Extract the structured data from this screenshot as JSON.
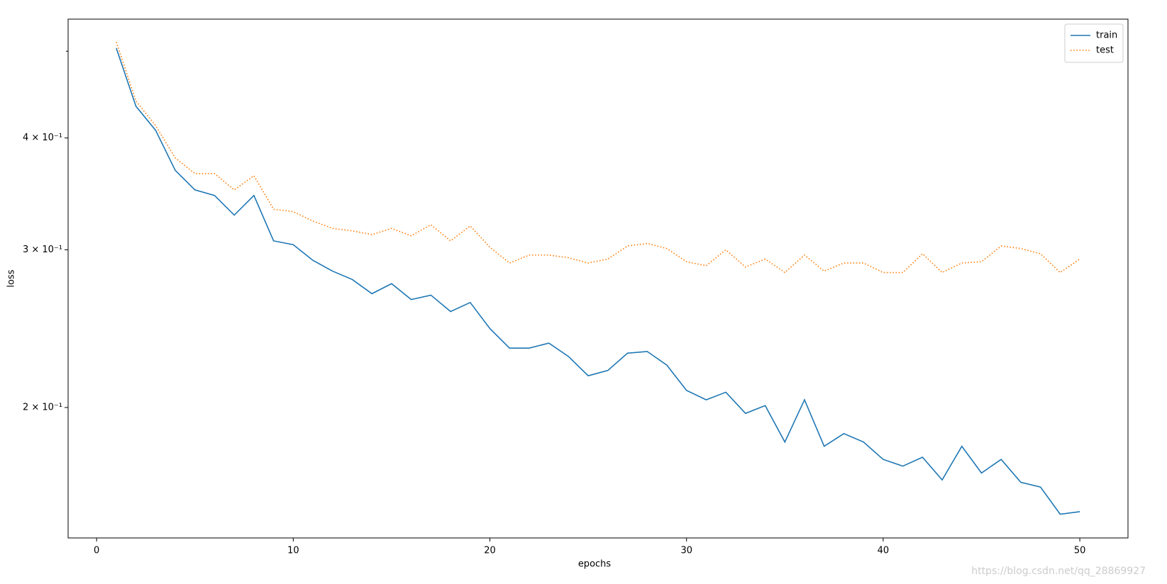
{
  "chart_data": {
    "type": "line",
    "x": [
      1,
      2,
      3,
      4,
      5,
      6,
      7,
      8,
      9,
      10,
      11,
      12,
      13,
      14,
      15,
      16,
      17,
      18,
      19,
      20,
      21,
      22,
      23,
      24,
      25,
      26,
      27,
      28,
      29,
      30,
      31,
      32,
      33,
      34,
      35,
      36,
      37,
      38,
      39,
      40,
      41,
      42,
      43,
      44,
      45,
      46,
      47,
      48,
      49,
      50
    ],
    "series": [
      {
        "name": "train",
        "color": "#1f77b4",
        "style": "solid",
        "values": [
          0.504,
          0.434,
          0.408,
          0.368,
          0.35,
          0.345,
          0.328,
          0.345,
          0.307,
          0.304,
          0.292,
          0.284,
          0.278,
          0.268,
          0.275,
          0.264,
          0.267,
          0.256,
          0.262,
          0.245,
          0.233,
          0.233,
          0.236,
          0.228,
          0.217,
          0.22,
          0.23,
          0.231,
          0.223,
          0.209,
          0.204,
          0.208,
          0.197,
          0.201,
          0.183,
          0.204,
          0.181,
          0.187,
          0.183,
          0.175,
          0.172,
          0.176,
          0.166,
          0.181,
          0.169,
          0.175,
          0.165,
          0.163,
          0.152,
          0.153
        ]
      },
      {
        "name": "test",
        "color": "#ff7f0e",
        "style": "dotted",
        "values": [
          0.512,
          0.44,
          0.413,
          0.38,
          0.365,
          0.365,
          0.35,
          0.363,
          0.333,
          0.331,
          0.323,
          0.317,
          0.315,
          0.312,
          0.317,
          0.311,
          0.32,
          0.307,
          0.319,
          0.302,
          0.29,
          0.296,
          0.296,
          0.294,
          0.29,
          0.293,
          0.303,
          0.305,
          0.301,
          0.291,
          0.288,
          0.3,
          0.287,
          0.293,
          0.283,
          0.296,
          0.284,
          0.29,
          0.29,
          0.283,
          0.283,
          0.297,
          0.283,
          0.29,
          0.291,
          0.303,
          0.301,
          0.297,
          0.283,
          0.293
        ]
      }
    ],
    "xlabel": "epochs",
    "ylabel": "loss",
    "xlim": [
      -1.45,
      52.45
    ],
    "xticks": [
      0,
      10,
      20,
      30,
      40,
      50
    ],
    "ylim": [
      0.143,
      0.543
    ],
    "ylog": true,
    "yticks": [
      {
        "value": 0.2,
        "label": "2 × 10⁻¹"
      },
      {
        "value": 0.3,
        "label": "3 × 10⁻¹"
      },
      {
        "value": 0.4,
        "label": "4 × 10⁻¹"
      }
    ],
    "yminor_ticks": [
      0.5
    ],
    "legend": "upper right",
    "annotation": "https://blog.csdn.net/qq_28869927"
  }
}
